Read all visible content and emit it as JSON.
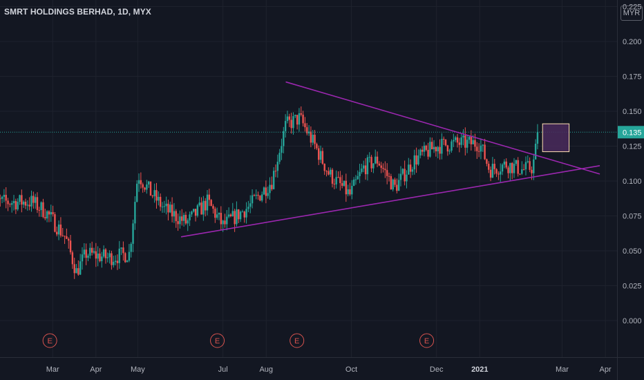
{
  "header": {
    "title": "SMRT HOLDINGS BERHAD, 1D, MYX",
    "currency": "MYR"
  },
  "colors": {
    "background": "#131722",
    "grid": "#1e222d",
    "up": "#26a69a",
    "down": "#ef5350",
    "trendline": "#9c27b0",
    "last_price_line": "#26a69a",
    "earnings": "#d9534f",
    "box_border": "#ffe0b2",
    "box_fill": "#4a2a5c"
  },
  "chart_data": {
    "type": "candlestick",
    "symbol": "SMRT HOLDINGS BERHAD",
    "interval": "1D",
    "exchange": "MYX",
    "y_axis": {
      "ticks": [
        "0.000",
        "0.025",
        "0.050",
        "0.075",
        "0.100",
        "0.125",
        "0.150",
        "0.175",
        "0.200",
        "0.225"
      ],
      "range": [
        -0.008,
        0.228
      ],
      "last_price": 0.135,
      "last_price_label": "0.135"
    },
    "x_axis": {
      "labels": [
        {
          "text": "Mar",
          "bold": false
        },
        {
          "text": "Apr",
          "bold": false
        },
        {
          "text": "May",
          "bold": false
        },
        {
          "text": "Jul",
          "bold": false
        },
        {
          "text": "Aug",
          "bold": false
        },
        {
          "text": "Oct",
          "bold": false
        },
        {
          "text": "Dec",
          "bold": false
        },
        {
          "text": "2021",
          "bold": true
        },
        {
          "text": "Mar",
          "bold": false
        },
        {
          "text": "Apr",
          "bold": false
        }
      ]
    },
    "earnings_markers": [
      "E",
      "E",
      "E",
      "E"
    ],
    "trendlines": [
      {
        "name": "upper",
        "from": [
          "2020-08-15",
          0.171
        ],
        "to": [
          "2021-03-28",
          0.105
        ]
      },
      {
        "name": "lower",
        "from": [
          "2020-06-01",
          0.06
        ],
        "to": [
          "2021-03-28",
          0.111
        ]
      }
    ],
    "highlight_box": {
      "from": "2021-02-15",
      "to": "2021-03-06",
      "low": 0.121,
      "high": 0.141
    },
    "price_points": [
      {
        "date": "2020-01-15",
        "price": 0.085
      },
      {
        "date": "2020-02-15",
        "price": 0.085
      },
      {
        "date": "2020-02-25",
        "price": 0.078
      },
      {
        "date": "2020-03-10",
        "price": 0.06
      },
      {
        "date": "2020-03-18",
        "price": 0.035
      },
      {
        "date": "2020-03-25",
        "price": 0.048
      },
      {
        "date": "2020-04-10",
        "price": 0.045
      },
      {
        "date": "2020-04-25",
        "price": 0.048
      },
      {
        "date": "2020-05-01",
        "price": 0.105
      },
      {
        "date": "2020-05-10",
        "price": 0.092
      },
      {
        "date": "2020-05-20",
        "price": 0.08
      },
      {
        "date": "2020-06-05",
        "price": 0.07
      },
      {
        "date": "2020-06-20",
        "price": 0.085
      },
      {
        "date": "2020-07-01",
        "price": 0.068
      },
      {
        "date": "2020-07-20",
        "price": 0.082
      },
      {
        "date": "2020-08-05",
        "price": 0.1
      },
      {
        "date": "2020-08-15",
        "price": 0.14
      },
      {
        "date": "2020-08-25",
        "price": 0.145
      },
      {
        "date": "2020-09-05",
        "price": 0.125
      },
      {
        "date": "2020-09-15",
        "price": 0.105
      },
      {
        "date": "2020-09-30",
        "price": 0.09
      },
      {
        "date": "2020-10-10",
        "price": 0.11
      },
      {
        "date": "2020-10-20",
        "price": 0.115
      },
      {
        "date": "2020-11-01",
        "price": 0.095
      },
      {
        "date": "2020-11-15",
        "price": 0.115
      },
      {
        "date": "2020-12-01",
        "price": 0.125
      },
      {
        "date": "2020-12-15",
        "price": 0.127
      },
      {
        "date": "2021-01-01",
        "price": 0.127
      },
      {
        "date": "2021-01-08",
        "price": 0.108
      },
      {
        "date": "2021-01-20",
        "price": 0.112
      },
      {
        "date": "2021-02-01",
        "price": 0.108
      },
      {
        "date": "2021-02-08",
        "price": 0.11
      },
      {
        "date": "2021-02-12",
        "price": 0.135
      }
    ]
  }
}
